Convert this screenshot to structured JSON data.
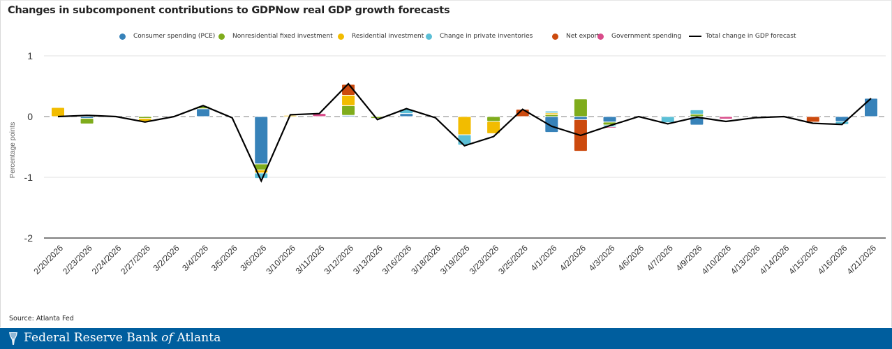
{
  "title": "Changes in subcomponent contributions to GDPNow real GDP growth forecasts",
  "source": "Source: Atlanta Fed",
  "footer": {
    "org_part1": "Federal Reserve Bank ",
    "org_of": "of",
    "org_part2": " Atlanta"
  },
  "legend": [
    {
      "name": "Consumer spending (PCE)",
      "color": "#3782b9",
      "type": "dot"
    },
    {
      "name": "Nonresidential fixed investment",
      "color": "#7fac1c",
      "type": "dot"
    },
    {
      "name": "Residential investment",
      "color": "#f2bc00",
      "type": "dot"
    },
    {
      "name": "Change in private inventories",
      "color": "#5bbfd6",
      "type": "dot"
    },
    {
      "name": "Net exports",
      "color": "#cc4a0e",
      "type": "dot"
    },
    {
      "name": "Government spending",
      "color": "#d94c8a",
      "type": "dot"
    },
    {
      "name": "Total change in GDP forecast",
      "color": "#000000",
      "type": "line"
    }
  ],
  "chart_data": {
    "type": "bar",
    "stacked": true,
    "title": "Changes in subcomponent contributions to GDPNow real GDP growth forecasts",
    "xlabel": "",
    "ylabel": "Percentage points",
    "ylim": [
      -2,
      1
    ],
    "yticks": [
      1,
      0,
      -1,
      -2
    ],
    "grid": true,
    "legend_position": "top",
    "categories": [
      "2/20/2026",
      "2/23/2026",
      "2/24/2026",
      "2/27/2026",
      "3/2/2026",
      "3/4/2026",
      "3/5/2026",
      "3/6/2026",
      "3/10/2026",
      "3/11/2026",
      "3/12/2026",
      "3/13/2026",
      "3/16/2026",
      "3/18/2026",
      "3/19/2026",
      "3/23/2026",
      "3/25/2026",
      "4/1/2026",
      "4/2/2026",
      "4/3/2026",
      "4/6/2026",
      "4/7/2026",
      "4/9/2026",
      "4/10/2026",
      "4/13/2026",
      "4/14/2026",
      "4/15/2026",
      "4/16/2026",
      "4/21/2026"
    ],
    "series": [
      {
        "name": "Consumer spending (PCE)",
        "color": "#3782b9",
        "values": [
          0,
          -0.03,
          0,
          0,
          -0.01,
          0.13,
          0,
          -0.78,
          0,
          0,
          0.02,
          0,
          0.05,
          0,
          0,
          0,
          0,
          -0.26,
          -0.05,
          -0.09,
          0,
          0,
          -0.14,
          0,
          0,
          0,
          0,
          -0.08,
          0.3
        ]
      },
      {
        "name": "Nonresidential fixed investment",
        "color": "#7fac1c",
        "values": [
          0,
          -0.09,
          0,
          -0.03,
          0,
          0.04,
          0,
          -0.1,
          0,
          0,
          0.16,
          -0.03,
          0,
          0,
          0,
          -0.08,
          0,
          0.03,
          0.29,
          -0.05,
          0,
          0,
          0.04,
          0,
          0,
          0,
          0,
          0,
          0
        ]
      },
      {
        "name": "Residential investment",
        "color": "#f2bc00",
        "values": [
          0.15,
          0,
          0,
          -0.05,
          0,
          0,
          0,
          -0.05,
          0.02,
          0,
          0.17,
          0,
          0,
          0,
          -0.3,
          -0.2,
          0,
          0.03,
          0,
          0,
          0,
          0,
          0,
          0,
          0,
          0,
          0,
          0,
          0
        ]
      },
      {
        "name": "Change in private inventories",
        "color": "#5bbfd6",
        "values": [
          0,
          0,
          0,
          0,
          0,
          0,
          0,
          -0.09,
          0,
          0,
          0,
          0,
          0.07,
          0,
          -0.17,
          0,
          0,
          0.03,
          0,
          -0.03,
          0,
          -0.1,
          0.07,
          0,
          0,
          0,
          0,
          -0.05,
          0
        ]
      },
      {
        "name": "Net exports",
        "color": "#cc4a0e",
        "values": [
          0,
          0,
          0,
          0,
          0,
          0,
          0,
          -0.01,
          0,
          0,
          0.18,
          0,
          0,
          0,
          0,
          0,
          0.12,
          0,
          -0.52,
          0,
          0,
          0,
          0,
          0,
          0,
          0,
          -0.09,
          0,
          0
        ]
      },
      {
        "name": "Government spending",
        "color": "#d94c8a",
        "values": [
          0,
          0,
          0,
          0,
          0,
          0,
          0,
          0,
          0,
          0.05,
          0,
          0,
          0,
          0,
          0,
          0,
          0,
          0,
          0,
          -0.02,
          0,
          0,
          0,
          -0.04,
          0,
          0,
          0,
          0,
          0
        ]
      }
    ],
    "line": {
      "name": "Total change in GDP forecast",
      "color": "#000000",
      "values": [
        0,
        0.02,
        0,
        -0.09,
        0,
        0.18,
        -0.02,
        -1.06,
        0.03,
        0.05,
        0.54,
        -0.05,
        0.13,
        -0.02,
        -0.48,
        -0.33,
        0.12,
        -0.16,
        -0.31,
        -0.15,
        0,
        -0.12,
        -0.01,
        -0.08,
        -0.02,
        0,
        -0.11,
        -0.13,
        0.3
      ]
    }
  }
}
